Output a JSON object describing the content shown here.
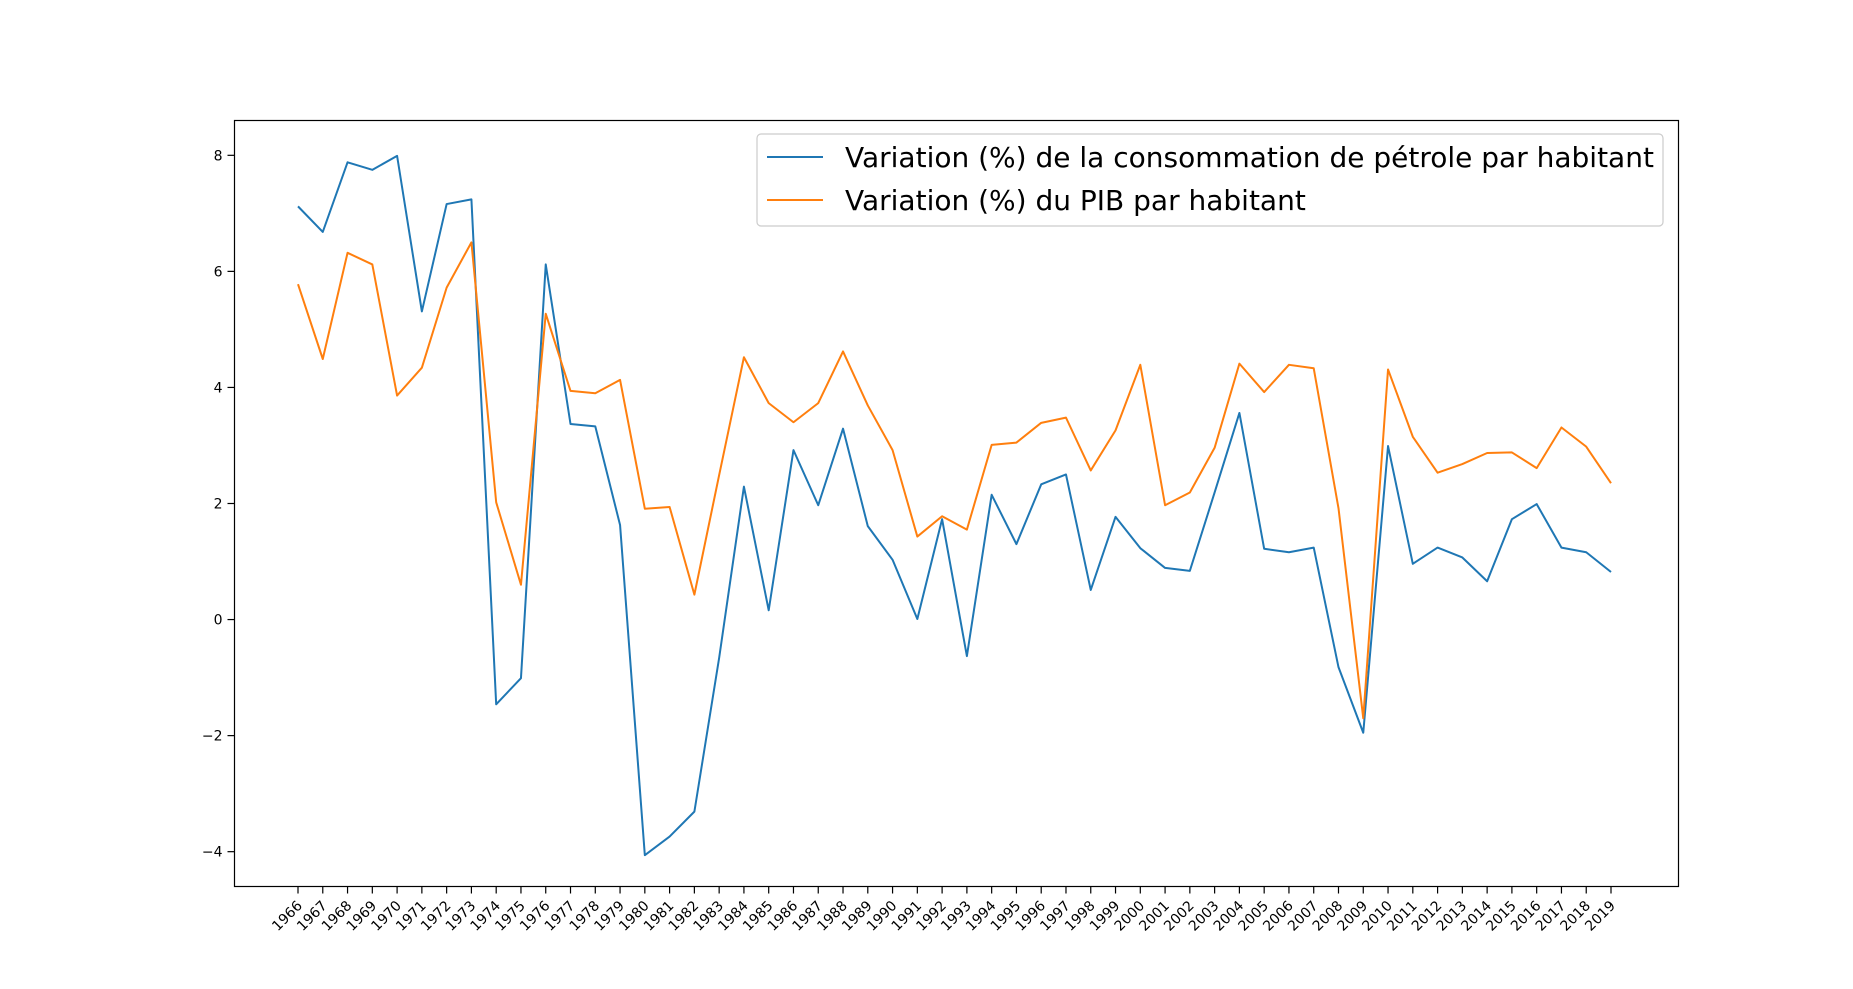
{
  "chart_data": {
    "type": "line",
    "title": "",
    "xlabel": "",
    "ylabel": "",
    "ylim": [
      -4.6,
      8.6
    ],
    "yticks": [
      -4,
      -2,
      0,
      2,
      4,
      6,
      8
    ],
    "ytick_labels": [
      "−4",
      "−2",
      "0",
      "2",
      "4",
      "6",
      "8"
    ],
    "grid": false,
    "legend_position": "top-right",
    "categories": [
      "1966",
      "1967",
      "1968",
      "1969",
      "1970",
      "1971",
      "1972",
      "1973",
      "1974",
      "1975",
      "1976",
      "1977",
      "1978",
      "1979",
      "1980",
      "1981",
      "1982",
      "1983",
      "1984",
      "1985",
      "1986",
      "1987",
      "1988",
      "1989",
      "1990",
      "1991",
      "1992",
      "1993",
      "1994",
      "1995",
      "1996",
      "1997",
      "1998",
      "1999",
      "2000",
      "2001",
      "2002",
      "2003",
      "2004",
      "2005",
      "2006",
      "2007",
      "2008",
      "2009",
      "2010",
      "2011",
      "2012",
      "2013",
      "2014",
      "2015",
      "2016",
      "2017",
      "2018",
      "2019"
    ],
    "series": [
      {
        "name": "Variation (%) de la consommation de pétrole par habitant",
        "color": "#1f77b4",
        "values": [
          7.12,
          6.68,
          7.88,
          7.75,
          7.99,
          5.31,
          7.16,
          7.24,
          -1.46,
          -1.01,
          6.12,
          3.37,
          3.33,
          1.63,
          -4.06,
          -3.74,
          -3.31,
          -0.66,
          2.29,
          0.16,
          2.92,
          1.97,
          3.29,
          1.61,
          1.03,
          0.01,
          1.73,
          -0.63,
          2.15,
          1.3,
          2.33,
          2.5,
          0.51,
          1.77,
          1.23,
          0.89,
          0.84,
          2.19,
          3.56,
          1.22,
          1.16,
          1.24,
          -0.82,
          -1.95,
          2.99,
          0.96,
          1.24,
          1.07,
          0.66,
          1.73,
          1.99,
          1.24,
          1.16,
          0.82
        ]
      },
      {
        "name": "Variation (%) du PIB par habitant",
        "color": "#ff7f0e",
        "values": [
          5.78,
          4.49,
          6.32,
          6.12,
          3.86,
          4.34,
          5.72,
          6.5,
          2.02,
          0.6,
          5.27,
          3.94,
          3.9,
          4.13,
          1.91,
          1.94,
          0.43,
          2.49,
          4.52,
          3.73,
          3.4,
          3.73,
          4.62,
          3.69,
          2.92,
          1.43,
          1.78,
          1.55,
          3.01,
          3.05,
          3.39,
          3.48,
          2.57,
          3.26,
          4.39,
          1.97,
          2.19,
          2.96,
          4.41,
          3.92,
          4.39,
          4.33,
          1.92,
          -1.7,
          4.31,
          3.15,
          2.53,
          2.68,
          2.87,
          2.88,
          2.61,
          3.31,
          2.98,
          2.35
        ]
      }
    ]
  }
}
